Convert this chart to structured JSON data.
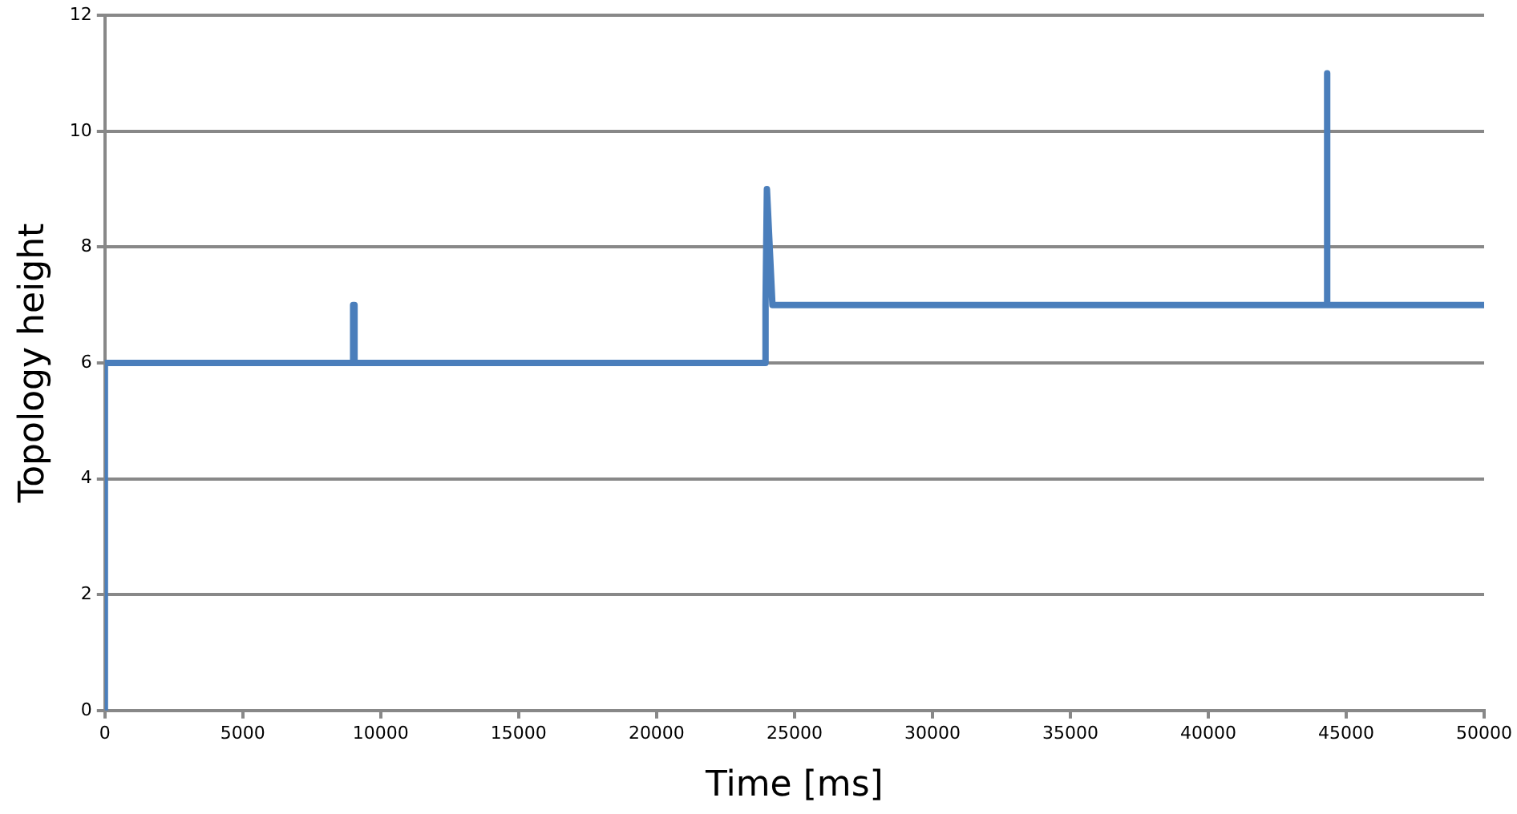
{
  "chart_data": {
    "type": "line",
    "xlabel": "Time [ms]",
    "ylabel": "Topology height",
    "series": [
      {
        "color": "#4a7ebb",
        "x": [
          0,
          0,
          9000,
          9000,
          9050,
          9050,
          23950,
          23950,
          24000,
          24200,
          44300,
          44300,
          44320,
          50000
        ],
        "values": [
          0,
          6,
          6,
          7,
          7,
          6,
          6,
          7,
          9,
          7,
          7,
          11,
          7,
          7
        ]
      }
    ],
    "xlim": [
      0,
      50000
    ],
    "xticks": [
      0,
      5000,
      10000,
      15000,
      20000,
      25000,
      30000,
      35000,
      40000,
      45000,
      50000
    ],
    "ylim": [
      0,
      12
    ],
    "yticks": [
      0,
      2,
      4,
      6,
      8,
      10,
      12
    ],
    "grid": "y",
    "legend": false,
    "marker": "none",
    "line_style": "solid"
  }
}
